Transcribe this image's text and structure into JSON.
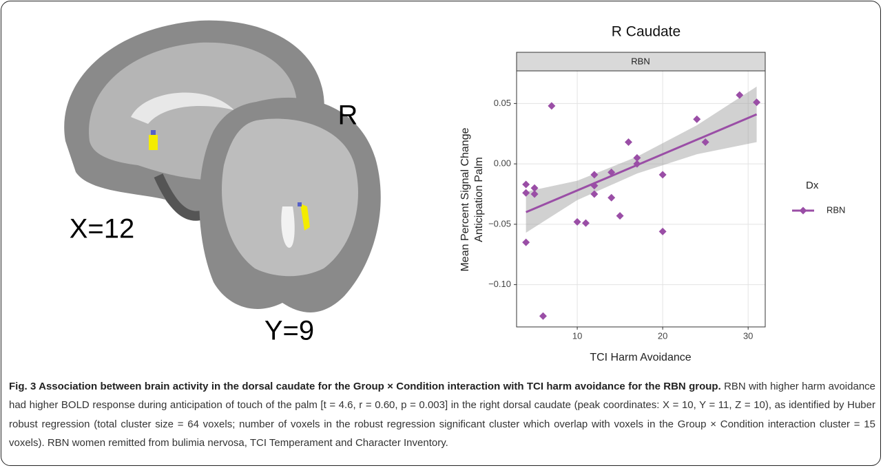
{
  "figure": {
    "sagittal_label": "X=12",
    "coronal_label": "Y=9",
    "side_label": "R"
  },
  "chart_data": {
    "type": "scatter",
    "title": "R Caudate",
    "facet": "RBN",
    "x_label": "TCI Harm Avoidance",
    "y_label": [
      "Mean Percent Signal Change",
      "Anticipation Palm"
    ],
    "legend_title": "Dx",
    "series": [
      {
        "name": "RBN",
        "color": "#9a4ea6",
        "x": [
          4,
          4,
          4,
          5,
          5,
          7,
          6,
          10,
          11,
          12,
          12,
          12,
          14,
          14,
          15,
          16,
          17,
          17,
          20,
          20,
          24,
          25,
          29,
          31
        ],
        "values": [
          -0.017,
          -0.024,
          -0.065,
          -0.02,
          -0.025,
          0.048,
          -0.126,
          -0.048,
          -0.049,
          -0.025,
          -0.018,
          -0.009,
          -0.007,
          -0.028,
          -0.043,
          0.018,
          0.0,
          0.005,
          -0.009,
          -0.056,
          0.037,
          0.018,
          0.057,
          0.051
        ]
      }
    ],
    "fit": {
      "x": [
        4,
        31
      ],
      "values": [
        -0.04,
        0.041
      ]
    },
    "band": {
      "x": [
        4,
        10,
        17,
        24,
        31
      ],
      "lower": [
        -0.057,
        -0.03,
        -0.008,
        0.008,
        0.018
      ],
      "upper": [
        -0.023,
        -0.014,
        0.006,
        0.032,
        0.064
      ]
    },
    "xlim": [
      2.9,
      32.0
    ],
    "ylim": [
      -0.135,
      0.077
    ],
    "xticks": [
      10,
      20,
      30
    ],
    "yticks": [
      {
        "value": -0.1,
        "label": "−0.10"
      },
      {
        "value": -0.05,
        "label": "−0.05"
      },
      {
        "value": 0,
        "label": "0.00"
      },
      {
        "value": 0.05,
        "label": "0.05"
      }
    ],
    "grid": true
  },
  "caption": {
    "title": "Fig. 3 Association between brain activity in the dorsal caudate for the Group × Condition interaction with TCI harm avoidance for the RBN group.",
    "body": "RBN with higher harm avoidance had higher BOLD response during anticipation of touch of the palm [t = 4.6, r = 0.60, p = 0.003] in the right dorsal caudate (peak coordinates: X = 10, Y = 11, Z = 10), as identified by Huber robust regression (total cluster size = 64 voxels; number of voxels in the robust regression significant cluster which overlap with voxels in the Group × Condition interaction cluster = 15 voxels). RBN women remitted from bulimia nervosa, TCI Temperament and Character Inventory."
  }
}
